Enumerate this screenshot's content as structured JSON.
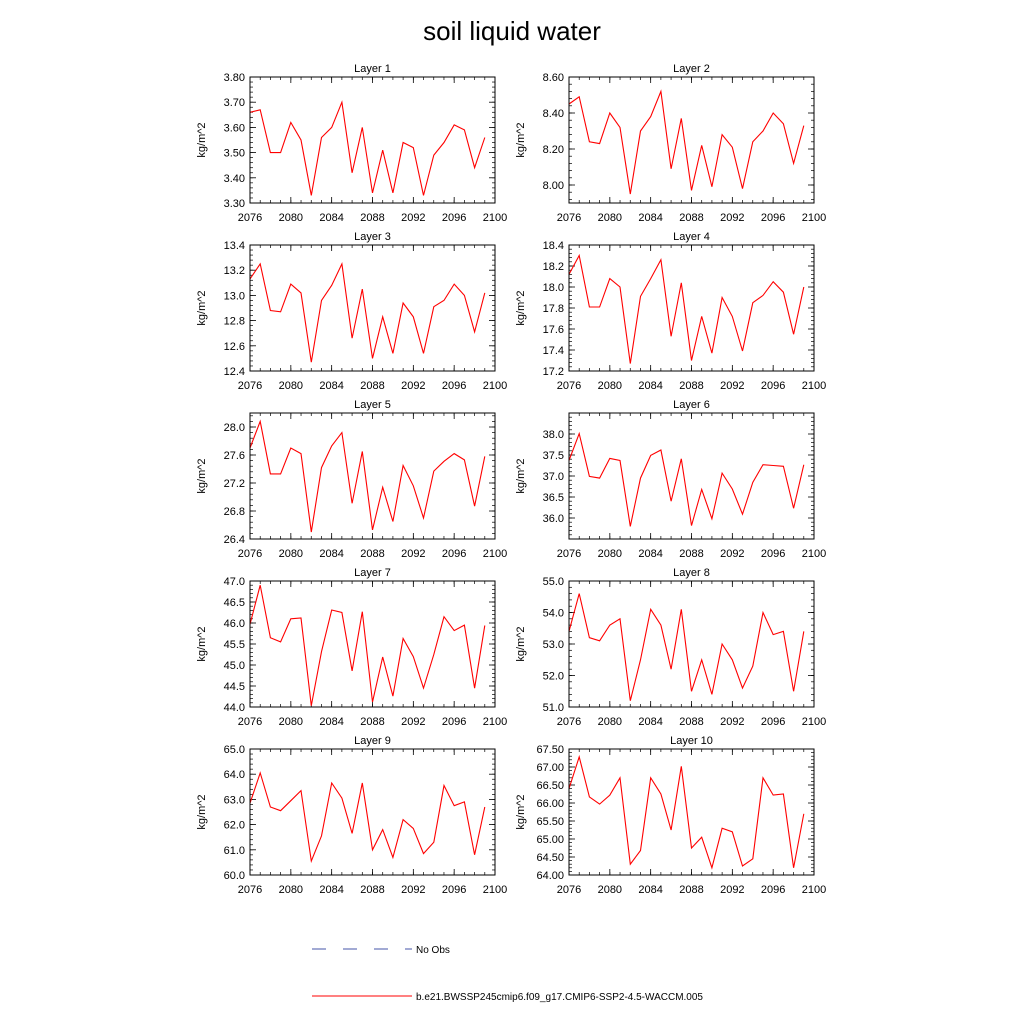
{
  "title": "soil liquid water",
  "legend": {
    "obs_label": "No Obs",
    "model_label": "b.e21.BWSSP245cmip6.f09_g17.CMIP6-SSP2-4.5-WACCM.005",
    "obs_color": "#4455aa",
    "model_color": "#ff0000"
  },
  "chart_data": [
    {
      "type": "line",
      "title": "Layer 1",
      "ylabel": "kg/m^2",
      "xlim": [
        2076,
        2100
      ],
      "ylim": [
        3.3,
        3.8
      ],
      "xticks": [
        "2076",
        "2080",
        "2084",
        "2088",
        "2092",
        "2096",
        "2100"
      ],
      "yticks": [
        "3.30",
        "3.40",
        "3.50",
        "3.60",
        "3.70",
        "3.80"
      ],
      "x": [
        2076,
        2077,
        2078,
        2079,
        2080,
        2081,
        2082,
        2083,
        2084,
        2085,
        2086,
        2087,
        2088,
        2089,
        2090,
        2091,
        2092,
        2093,
        2094,
        2095,
        2096,
        2097,
        2098,
        2099
      ],
      "series": [
        {
          "values": [
            3.66,
            3.67,
            3.5,
            3.5,
            3.62,
            3.55,
            3.33,
            3.56,
            3.6,
            3.7,
            3.42,
            3.6,
            3.34,
            3.51,
            3.34,
            3.54,
            3.52,
            3.33,
            3.49,
            3.54,
            3.61,
            3.59,
            3.44,
            3.56
          ]
        }
      ]
    },
    {
      "type": "line",
      "title": "Layer 2",
      "ylabel": "kg/m^2",
      "xlim": [
        2076,
        2100
      ],
      "ylim": [
        7.9,
        8.6
      ],
      "xticks": [
        "2076",
        "2080",
        "2084",
        "2088",
        "2092",
        "2096",
        "2100"
      ],
      "yticks": [
        "8.00",
        "8.20",
        "8.40",
        "8.60"
      ],
      "x": [
        2076,
        2077,
        2078,
        2079,
        2080,
        2081,
        2082,
        2083,
        2084,
        2085,
        2086,
        2087,
        2088,
        2089,
        2090,
        2091,
        2092,
        2093,
        2094,
        2095,
        2096,
        2097,
        2098,
        2099
      ],
      "series": [
        {
          "values": [
            8.45,
            8.49,
            8.24,
            8.23,
            8.4,
            8.32,
            7.95,
            8.3,
            8.38,
            8.52,
            8.09,
            8.37,
            7.97,
            8.22,
            7.99,
            8.28,
            8.21,
            7.98,
            8.24,
            8.3,
            8.4,
            8.34,
            8.12,
            8.33
          ]
        }
      ]
    },
    {
      "type": "line",
      "title": "Layer 3",
      "ylabel": "kg/m^2",
      "xlim": [
        2076,
        2100
      ],
      "ylim": [
        12.4,
        13.4
      ],
      "xticks": [
        "2076",
        "2080",
        "2084",
        "2088",
        "2092",
        "2096",
        "2100"
      ],
      "yticks": [
        "12.4",
        "12.6",
        "12.8",
        "13.0",
        "13.2",
        "13.4"
      ],
      "x": [
        2076,
        2077,
        2078,
        2079,
        2080,
        2081,
        2082,
        2083,
        2084,
        2085,
        2086,
        2087,
        2088,
        2089,
        2090,
        2091,
        2092,
        2093,
        2094,
        2095,
        2096,
        2097,
        2098,
        2099
      ],
      "series": [
        {
          "values": [
            13.13,
            13.25,
            12.88,
            12.87,
            13.09,
            13.02,
            12.47,
            12.96,
            13.08,
            13.25,
            12.66,
            13.05,
            12.5,
            12.83,
            12.54,
            12.94,
            12.83,
            12.54,
            12.91,
            12.96,
            13.09,
            13.0,
            12.71,
            13.02
          ]
        }
      ]
    },
    {
      "type": "line",
      "title": "Layer 4",
      "ylabel": "kg/m^2",
      "xlim": [
        2076,
        2100
      ],
      "ylim": [
        17.2,
        18.4
      ],
      "xticks": [
        "2076",
        "2080",
        "2084",
        "2088",
        "2092",
        "2096",
        "2100"
      ],
      "yticks": [
        "17.2",
        "17.4",
        "17.6",
        "17.8",
        "18.0",
        "18.2",
        "18.4"
      ],
      "x": [
        2076,
        2077,
        2078,
        2079,
        2080,
        2081,
        2082,
        2083,
        2084,
        2085,
        2086,
        2087,
        2088,
        2089,
        2090,
        2091,
        2092,
        2093,
        2094,
        2095,
        2096,
        2097,
        2098,
        2099
      ],
      "series": [
        {
          "values": [
            18.12,
            18.3,
            17.81,
            17.81,
            18.08,
            18.0,
            17.27,
            17.91,
            18.08,
            18.26,
            17.53,
            18.04,
            17.3,
            17.72,
            17.37,
            17.9,
            17.72,
            17.39,
            17.85,
            17.92,
            18.05,
            17.95,
            17.55,
            18.0
          ]
        }
      ]
    },
    {
      "type": "line",
      "title": "Layer 5",
      "ylabel": "kg/m^2",
      "xlim": [
        2076,
        2100
      ],
      "ylim": [
        26.4,
        28.2
      ],
      "xticks": [
        "2076",
        "2080",
        "2084",
        "2088",
        "2092",
        "2096",
        "2100"
      ],
      "yticks": [
        "26.4",
        "26.8",
        "27.2",
        "27.6",
        "28.0"
      ],
      "x": [
        2076,
        2077,
        2078,
        2079,
        2080,
        2081,
        2082,
        2083,
        2084,
        2085,
        2086,
        2087,
        2088,
        2089,
        2090,
        2091,
        2092,
        2093,
        2094,
        2095,
        2096,
        2097,
        2098,
        2099
      ],
      "series": [
        {
          "values": [
            27.7,
            28.08,
            27.33,
            27.33,
            27.7,
            27.62,
            26.5,
            27.42,
            27.73,
            27.92,
            26.91,
            27.65,
            26.53,
            27.14,
            26.65,
            27.45,
            27.16,
            26.7,
            27.37,
            27.51,
            27.62,
            27.53,
            26.87,
            27.58
          ]
        }
      ]
    },
    {
      "type": "line",
      "title": "Layer 6",
      "ylabel": "kg/m^2",
      "xlim": [
        2076,
        2100
      ],
      "ylim": [
        35.5,
        38.5
      ],
      "xticks": [
        "2076",
        "2080",
        "2084",
        "2088",
        "2092",
        "2096",
        "2100"
      ],
      "yticks": [
        "36.0",
        "36.5",
        "37.0",
        "37.5",
        "38.0"
      ],
      "x": [
        2076,
        2077,
        2078,
        2079,
        2080,
        2081,
        2082,
        2083,
        2084,
        2085,
        2086,
        2087,
        2088,
        2089,
        2090,
        2091,
        2092,
        2093,
        2094,
        2095,
        2096,
        2097,
        2098,
        2099
      ],
      "series": [
        {
          "values": [
            37.37,
            38.01,
            36.99,
            36.95,
            37.42,
            37.37,
            35.8,
            36.95,
            37.49,
            37.62,
            36.4,
            37.41,
            35.82,
            36.68,
            35.98,
            37.07,
            36.69,
            36.09,
            36.85,
            37.27,
            37.25,
            37.23,
            36.23,
            37.27
          ]
        }
      ]
    },
    {
      "type": "line",
      "title": "Layer 7",
      "ylabel": "kg/m^2",
      "xlim": [
        2076,
        2100
      ],
      "ylim": [
        44.0,
        47.0
      ],
      "xticks": [
        "2076",
        "2080",
        "2084",
        "2088",
        "2092",
        "2096",
        "2100"
      ],
      "yticks": [
        "44.0",
        "44.5",
        "45.0",
        "45.5",
        "46.0",
        "46.5",
        "47.0"
      ],
      "x": [
        2076,
        2077,
        2078,
        2079,
        2080,
        2081,
        2082,
        2083,
        2084,
        2085,
        2086,
        2087,
        2088,
        2089,
        2090,
        2091,
        2092,
        2093,
        2094,
        2095,
        2096,
        2097,
        2098,
        2099
      ],
      "series": [
        {
          "values": [
            45.97,
            46.9,
            45.65,
            45.55,
            46.1,
            46.12,
            44.03,
            45.32,
            46.31,
            46.25,
            44.86,
            46.27,
            44.12,
            45.19,
            44.26,
            45.63,
            45.2,
            44.45,
            45.25,
            46.15,
            45.82,
            45.95,
            44.45,
            45.94
          ]
        }
      ]
    },
    {
      "type": "line",
      "title": "Layer 8",
      "ylabel": "kg/m^2",
      "xlim": [
        2076,
        2100
      ],
      "ylim": [
        51.0,
        55.0
      ],
      "xticks": [
        "2076",
        "2080",
        "2084",
        "2088",
        "2092",
        "2096",
        "2100"
      ],
      "yticks": [
        "51.0",
        "52.0",
        "53.0",
        "54.0",
        "55.0"
      ],
      "x": [
        2076,
        2077,
        2078,
        2079,
        2080,
        2081,
        2082,
        2083,
        2084,
        2085,
        2086,
        2087,
        2088,
        2089,
        2090,
        2091,
        2092,
        2093,
        2094,
        2095,
        2096,
        2097,
        2098,
        2099
      ],
      "series": [
        {
          "values": [
            53.4,
            54.6,
            53.2,
            53.1,
            53.6,
            53.8,
            51.2,
            52.5,
            54.1,
            53.6,
            52.2,
            54.1,
            51.5,
            52.5,
            51.4,
            53.0,
            52.5,
            51.6,
            52.3,
            54.0,
            53.3,
            53.4,
            51.5,
            53.4
          ]
        }
      ]
    },
    {
      "type": "line",
      "title": "Layer 9",
      "ylabel": "kg/m^2",
      "xlim": [
        2076,
        2100
      ],
      "ylim": [
        60.0,
        65.0
      ],
      "xticks": [
        "2076",
        "2080",
        "2084",
        "2088",
        "2092",
        "2096",
        "2100"
      ],
      "yticks": [
        "60.0",
        "61.0",
        "62.0",
        "63.0",
        "64.0",
        "65.0"
      ],
      "x": [
        2076,
        2077,
        2078,
        2079,
        2080,
        2081,
        2082,
        2083,
        2084,
        2085,
        2086,
        2087,
        2088,
        2089,
        2090,
        2091,
        2092,
        2093,
        2094,
        2095,
        2096,
        2097,
        2098,
        2099
      ],
      "series": [
        {
          "values": [
            62.85,
            64.05,
            62.7,
            62.55,
            62.95,
            63.35,
            60.55,
            61.55,
            63.65,
            63.05,
            61.65,
            63.65,
            61.0,
            61.8,
            60.7,
            62.2,
            61.85,
            60.85,
            61.3,
            63.55,
            62.75,
            62.9,
            60.8,
            62.7
          ]
        }
      ]
    },
    {
      "type": "line",
      "title": "Layer 10",
      "ylabel": "kg/m^2",
      "xlim": [
        2076,
        2100
      ],
      "ylim": [
        64.0,
        67.5
      ],
      "xticks": [
        "2076",
        "2080",
        "2084",
        "2088",
        "2092",
        "2096",
        "2100"
      ],
      "yticks": [
        "64.00",
        "64.50",
        "65.00",
        "65.50",
        "66.00",
        "66.50",
        "67.00",
        "67.50"
      ],
      "x": [
        2076,
        2077,
        2078,
        2079,
        2080,
        2081,
        2082,
        2083,
        2084,
        2085,
        2086,
        2087,
        2088,
        2089,
        2090,
        2091,
        2092,
        2093,
        2094,
        2095,
        2096,
        2097,
        2098,
        2099
      ],
      "series": [
        {
          "values": [
            66.4,
            67.28,
            66.17,
            65.97,
            66.22,
            66.7,
            64.3,
            64.68,
            66.7,
            66.25,
            65.25,
            67.02,
            64.75,
            65.05,
            64.2,
            65.3,
            65.2,
            64.25,
            64.45,
            66.7,
            66.22,
            66.25,
            64.2,
            65.7
          ]
        }
      ]
    }
  ]
}
